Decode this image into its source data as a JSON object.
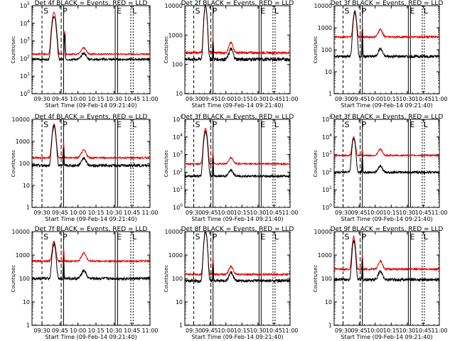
{
  "page": {
    "x_tick_labels": [
      "09:30",
      "09:45",
      "10:00",
      "10:15",
      "10:30",
      "10:45",
      "11:00"
    ],
    "x_axis_title": "Start Time (09-Feb-14 09:21:40)",
    "y_axis_title": "Counts/sec",
    "marker_letters": [
      "S",
      "P",
      "E",
      "L"
    ]
  },
  "chart_data": [
    {
      "type": "line",
      "title": "Det 4f BLACK = Events, RED = LLD",
      "y_tick_labels": [
        "10^0",
        "10^1",
        "10^2",
        "10^3",
        "10^4",
        "10^5"
      ],
      "y_tick_values": [
        1,
        10,
        100,
        1000,
        10000,
        100000
      ],
      "ylim": [
        1,
        100000
      ],
      "log_scale": true,
      "peak": {
        "x": "09:40",
        "events": 25000,
        "lld": 40000
      },
      "baseline": {
        "events": 90,
        "lld": 180
      },
      "spike": {
        "x": "09:49",
        "events": 3000,
        "lld": 4000
      }
    },
    {
      "type": "line",
      "title": "Det 2f BLACK = Events, RED = LLD",
      "y_tick_labels": [
        "10",
        "100",
        "1000",
        "10000"
      ],
      "y_tick_values": [
        10,
        100,
        1000,
        10000
      ],
      "ylim": [
        10,
        10000
      ],
      "log_scale": true,
      "peak": {
        "x": "09:41",
        "events": 10000,
        "lld": 10000
      },
      "baseline": {
        "events": 150,
        "lld": 250
      },
      "spike": {
        "x": "09:48",
        "events": 600,
        "lld": 800
      }
    },
    {
      "type": "line",
      "title": "Det 3f BLACK = Events, RED = LLD",
      "y_tick_labels": [
        "1",
        "10",
        "100",
        "1000",
        "10000"
      ],
      "y_tick_values": [
        1,
        10,
        100,
        1000,
        10000
      ],
      "ylim": [
        1,
        10000
      ],
      "log_scale": true,
      "peak": {
        "x": "09:41",
        "events": 5000,
        "lld": 6000
      },
      "baseline": {
        "events": 50,
        "lld": 380
      },
      "spike": {
        "x": "09:48",
        "events": 800,
        "lld": 1000
      }
    },
    {
      "type": "line",
      "title": "Det 4f BLACK = Events, RED = LLD",
      "y_tick_labels": [
        "1",
        "10",
        "100",
        "1000",
        "10000"
      ],
      "y_tick_values": [
        1,
        10,
        100,
        1000,
        10000
      ],
      "ylim": [
        1,
        10000
      ],
      "log_scale": true,
      "peak": {
        "x": "09:40",
        "events": 5000,
        "lld": 6000
      },
      "baseline": {
        "events": 80,
        "lld": 180
      },
      "spike": {
        "x": "09:48",
        "events": 600,
        "lld": 900
      }
    },
    {
      "type": "line",
      "title": "Det 3f BLACK = Events, RED = LLD",
      "y_tick_labels": [
        "10^0",
        "10^1",
        "10^2",
        "10^3",
        "10^4",
        "10^5"
      ],
      "y_tick_values": [
        1,
        10,
        100,
        1000,
        10000,
        100000
      ],
      "ylim": [
        1,
        100000
      ],
      "log_scale": true,
      "peak": {
        "x": "09:41",
        "events": 20000,
        "lld": 30000
      },
      "baseline": {
        "events": 60,
        "lld": 300
      },
      "spike": {
        "x": "09:48",
        "events": 600,
        "lld": 1500
      }
    },
    {
      "type": "line",
      "title": "Det 3f BLACK = Events, RED = LLD",
      "y_tick_labels": [
        "10^0",
        "10^1",
        "10^2",
        "10^3",
        "10^4",
        "10^5"
      ],
      "y_tick_values": [
        1,
        10,
        100,
        1000,
        10000,
        100000
      ],
      "ylim": [
        1,
        100000
      ],
      "log_scale": true,
      "peak": {
        "x": "09:40",
        "events": 8000,
        "lld": 10000
      },
      "baseline": {
        "events": 100,
        "lld": 900
      },
      "spike": {
        "x": "09:48",
        "events": 1000,
        "lld": 2000
      }
    },
    {
      "type": "line",
      "title": "Det 7f BLACK = Events, RED = LLD",
      "y_tick_labels": [
        "1",
        "10",
        "100",
        "1000",
        "10000"
      ],
      "y_tick_values": [
        1,
        10,
        100,
        1000,
        10000
      ],
      "ylim": [
        1,
        10000
      ],
      "log_scale": true,
      "peak": {
        "x": "09:40",
        "events": 3000,
        "lld": 4000
      },
      "baseline": {
        "events": 100,
        "lld": 550
      },
      "spike": {
        "x": "09:48",
        "events": 700,
        "lld": 2000
      }
    },
    {
      "type": "line",
      "title": "Det 8f BLACK = Events, RED = LLD",
      "y_tick_labels": [
        "1",
        "10",
        "100",
        "1000",
        "10000"
      ],
      "y_tick_values": [
        1,
        10,
        100,
        1000,
        10000
      ],
      "ylim": [
        1,
        10000
      ],
      "log_scale": true,
      "peak": {
        "x": "09:41",
        "events": 10000,
        "lld": 10000
      },
      "baseline": {
        "events": 80,
        "lld": 150
      },
      "spike": {
        "x": "09:48",
        "events": 500,
        "lld": 800
      }
    },
    {
      "type": "line",
      "title": "Det 9f BLACK = Events, RED = LLD",
      "y_tick_labels": [
        "1",
        "10",
        "100",
        "1000",
        "10000"
      ],
      "y_tick_values": [
        1,
        10,
        100,
        1000,
        10000
      ],
      "ylim": [
        1,
        10000
      ],
      "log_scale": true,
      "peak": {
        "x": "09:40",
        "events": 4000,
        "lld": 6000
      },
      "baseline": {
        "events": 90,
        "lld": 250
      },
      "spike": {
        "x": "09:48",
        "events": 700,
        "lld": 1000
      }
    }
  ]
}
